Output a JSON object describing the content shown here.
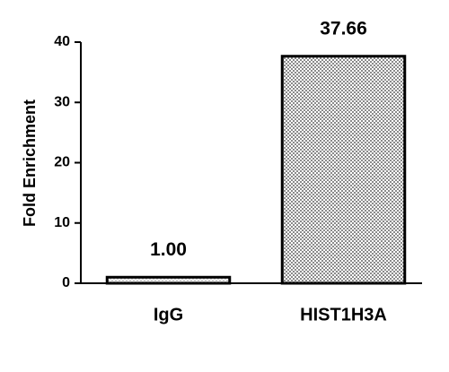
{
  "chart_data": {
    "type": "bar",
    "y_label": "Fold Enrichment",
    "categories": [
      "IgG",
      "HIST1H3A"
    ],
    "values": [
      1.0,
      37.66
    ],
    "value_labels": [
      "1.00",
      "37.66"
    ],
    "colors": [
      "#d0d0d0",
      "#8a8a8a"
    ],
    "ylim": [
      0,
      40
    ],
    "yticks": [
      0,
      10,
      20,
      30,
      40
    ],
    "grid": false
  }
}
